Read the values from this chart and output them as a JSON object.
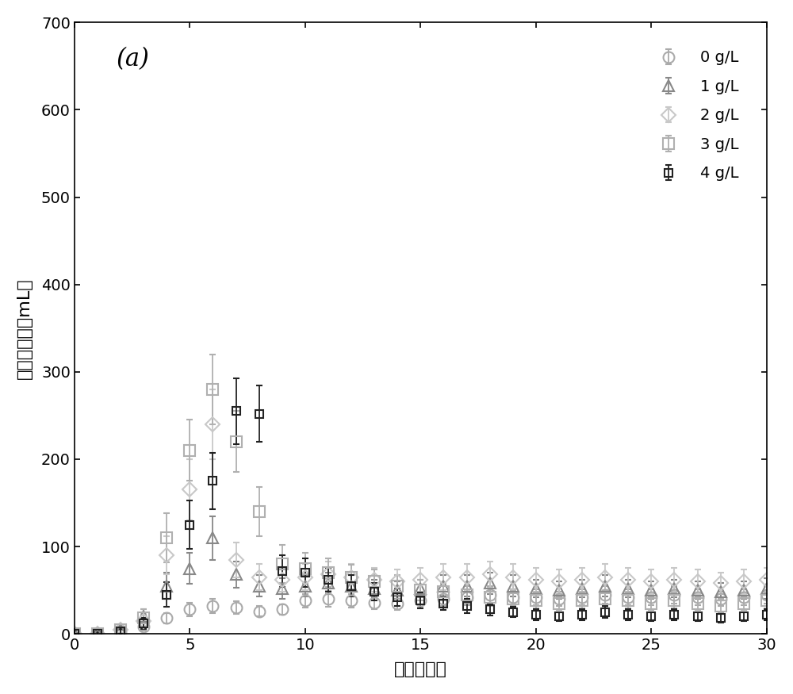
{
  "title_label": "(a)",
  "xlabel": "时间（天）",
  "ylabel": "甲烷日产量（mL）",
  "xlim": [
    0,
    30
  ],
  "ylim": [
    0,
    700
  ],
  "xticks": [
    0,
    5,
    10,
    15,
    20,
    25,
    30
  ],
  "yticks": [
    0,
    100,
    200,
    300,
    400,
    500,
    600,
    700
  ],
  "series": [
    {
      "label": "0 g/L",
      "color": "#aaaaaa",
      "marker": "o",
      "markersize": 10,
      "linewidth": 1.3,
      "x": [
        0,
        1,
        2,
        3,
        4,
        5,
        6,
        7,
        8,
        9,
        10,
        11,
        12,
        13,
        14,
        15,
        16,
        17,
        18,
        19,
        20,
        21,
        22,
        23,
        24,
        25,
        26,
        27,
        28,
        29,
        30
      ],
      "y": [
        0,
        0,
        2,
        8,
        18,
        28,
        32,
        30,
        26,
        28,
        38,
        40,
        38,
        36,
        35,
        38,
        40,
        42,
        45,
        42,
        42,
        40,
        42,
        45,
        42,
        42,
        45,
        42,
        40,
        42,
        45
      ],
      "yerr": [
        0,
        1,
        2,
        4,
        6,
        8,
        8,
        7,
        6,
        6,
        8,
        9,
        8,
        8,
        8,
        8,
        8,
        9,
        10,
        9,
        9,
        8,
        9,
        10,
        9,
        9,
        10,
        9,
        8,
        9,
        10
      ]
    },
    {
      "label": "1 g/L",
      "color": "#888888",
      "marker": "^",
      "markersize": 10,
      "linewidth": 1.3,
      "x": [
        0,
        1,
        2,
        3,
        4,
        5,
        6,
        7,
        8,
        9,
        10,
        11,
        12,
        13,
        14,
        15,
        16,
        17,
        18,
        19,
        20,
        21,
        22,
        23,
        24,
        25,
        26,
        27,
        28,
        29,
        30
      ],
      "y": [
        0,
        0,
        5,
        20,
        55,
        75,
        110,
        68,
        55,
        52,
        55,
        58,
        55,
        52,
        50,
        52,
        55,
        55,
        58,
        55,
        52,
        50,
        52,
        55,
        52,
        50,
        52,
        50,
        48,
        50,
        52
      ],
      "yerr": [
        0,
        2,
        4,
        8,
        15,
        18,
        25,
        15,
        12,
        12,
        12,
        12,
        12,
        10,
        10,
        10,
        12,
        12,
        12,
        12,
        10,
        10,
        10,
        12,
        10,
        10,
        10,
        10,
        10,
        10,
        12
      ]
    },
    {
      "label": "2 g/L",
      "color": "#c8c8c8",
      "marker": "D",
      "markersize": 9,
      "linewidth": 1.3,
      "x": [
        0,
        1,
        2,
        3,
        4,
        5,
        6,
        7,
        8,
        9,
        10,
        11,
        12,
        13,
        14,
        15,
        16,
        17,
        18,
        19,
        20,
        21,
        22,
        23,
        24,
        25,
        26,
        27,
        28,
        29,
        30
      ],
      "y": [
        0,
        0,
        5,
        15,
        90,
        165,
        240,
        85,
        65,
        62,
        65,
        68,
        65,
        62,
        60,
        62,
        65,
        65,
        68,
        65,
        62,
        60,
        62,
        65,
        62,
        60,
        62,
        60,
        58,
        60,
        62
      ],
      "yerr": [
        0,
        2,
        4,
        8,
        22,
        35,
        40,
        20,
        15,
        14,
        15,
        15,
        15,
        14,
        14,
        14,
        15,
        15,
        15,
        15,
        14,
        14,
        14,
        15,
        14,
        14,
        14,
        14,
        12,
        14,
        14
      ]
    },
    {
      "label": "3 g/L",
      "color": "#b0b0b0",
      "marker": "s",
      "markersize": 10,
      "linewidth": 1.3,
      "x": [
        0,
        1,
        2,
        3,
        4,
        5,
        6,
        7,
        8,
        9,
        10,
        11,
        12,
        13,
        14,
        15,
        16,
        17,
        18,
        19,
        20,
        21,
        22,
        23,
        24,
        25,
        26,
        27,
        28,
        29,
        30
      ],
      "y": [
        0,
        0,
        5,
        18,
        110,
        210,
        280,
        220,
        140,
        80,
        75,
        70,
        65,
        60,
        55,
        50,
        48,
        45,
        42,
        40,
        38,
        35,
        38,
        40,
        38,
        35,
        38,
        35,
        32,
        35,
        38
      ],
      "yerr": [
        0,
        2,
        5,
        10,
        28,
        35,
        40,
        35,
        28,
        22,
        18,
        16,
        14,
        14,
        12,
        12,
        10,
        10,
        10,
        9,
        9,
        8,
        9,
        9,
        9,
        8,
        9,
        8,
        8,
        8,
        9
      ]
    },
    {
      "label": "4 g/L",
      "color": "#222222",
      "marker": "s",
      "markersize": 7,
      "linewidth": 1.8,
      "x": [
        0,
        1,
        2,
        3,
        4,
        5,
        6,
        7,
        8,
        9,
        10,
        11,
        12,
        13,
        14,
        15,
        16,
        17,
        18,
        19,
        20,
        21,
        22,
        23,
        24,
        25,
        26,
        27,
        28,
        29,
        30
      ],
      "y": [
        0,
        0,
        3,
        12,
        45,
        125,
        175,
        255,
        252,
        72,
        70,
        62,
        55,
        48,
        42,
        38,
        35,
        32,
        28,
        25,
        22,
        20,
        22,
        25,
        22,
        20,
        22,
        20,
        18,
        20,
        22
      ],
      "yerr": [
        0,
        2,
        3,
        6,
        14,
        28,
        32,
        38,
        32,
        18,
        16,
        14,
        12,
        10,
        10,
        9,
        8,
        8,
        7,
        6,
        6,
        5,
        6,
        7,
        6,
        5,
        6,
        5,
        5,
        5,
        6
      ]
    }
  ],
  "bg_color": "#ffffff",
  "legend_fontsize": 14,
  "axis_fontsize": 16,
  "tick_fontsize": 14,
  "label_fontsize": 22
}
